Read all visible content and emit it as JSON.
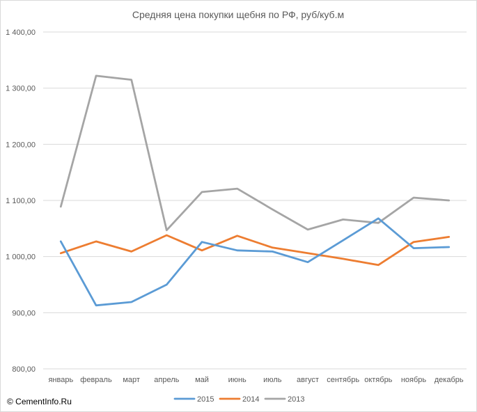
{
  "chart_data": {
    "type": "line",
    "title": "Средняя цена покупки щебня по РФ, руб/куб.м",
    "categories": [
      "январь",
      "февраль",
      "март",
      "апрель",
      "май",
      "июнь",
      "июль",
      "август",
      "сентябрь",
      "октябрь",
      "ноябрь",
      "декабрь"
    ],
    "ylim": [
      800,
      1400
    ],
    "yticks": [
      800,
      900,
      1000,
      1100,
      1200,
      1300,
      1400
    ],
    "ytick_labels": [
      "800,00",
      "900,00",
      "1 000,00",
      "1 100,00",
      "1 200,00",
      "1 300,00",
      "1 400,00"
    ],
    "grid": true,
    "legend_position": "bottom",
    "series": [
      {
        "name": "2015",
        "color": "#5b9bd5",
        "values": [
          1027,
          913,
          919,
          950,
          1026,
          1011,
          1009,
          990,
          1029,
          1068,
          1015,
          1017
        ]
      },
      {
        "name": "2014",
        "color": "#ed7d31",
        "values": [
          1006,
          1027,
          1009,
          1038,
          1011,
          1037,
          1016,
          1006,
          996,
          985,
          1026,
          1035
        ]
      },
      {
        "name": "2013",
        "color": "#a5a5a5",
        "values": [
          1089,
          1322,
          1315,
          1047,
          1115,
          1121,
          1084,
          1048,
          1066,
          1060,
          1105,
          1100
        ]
      }
    ]
  },
  "copyright": "© CementInfo.Ru"
}
